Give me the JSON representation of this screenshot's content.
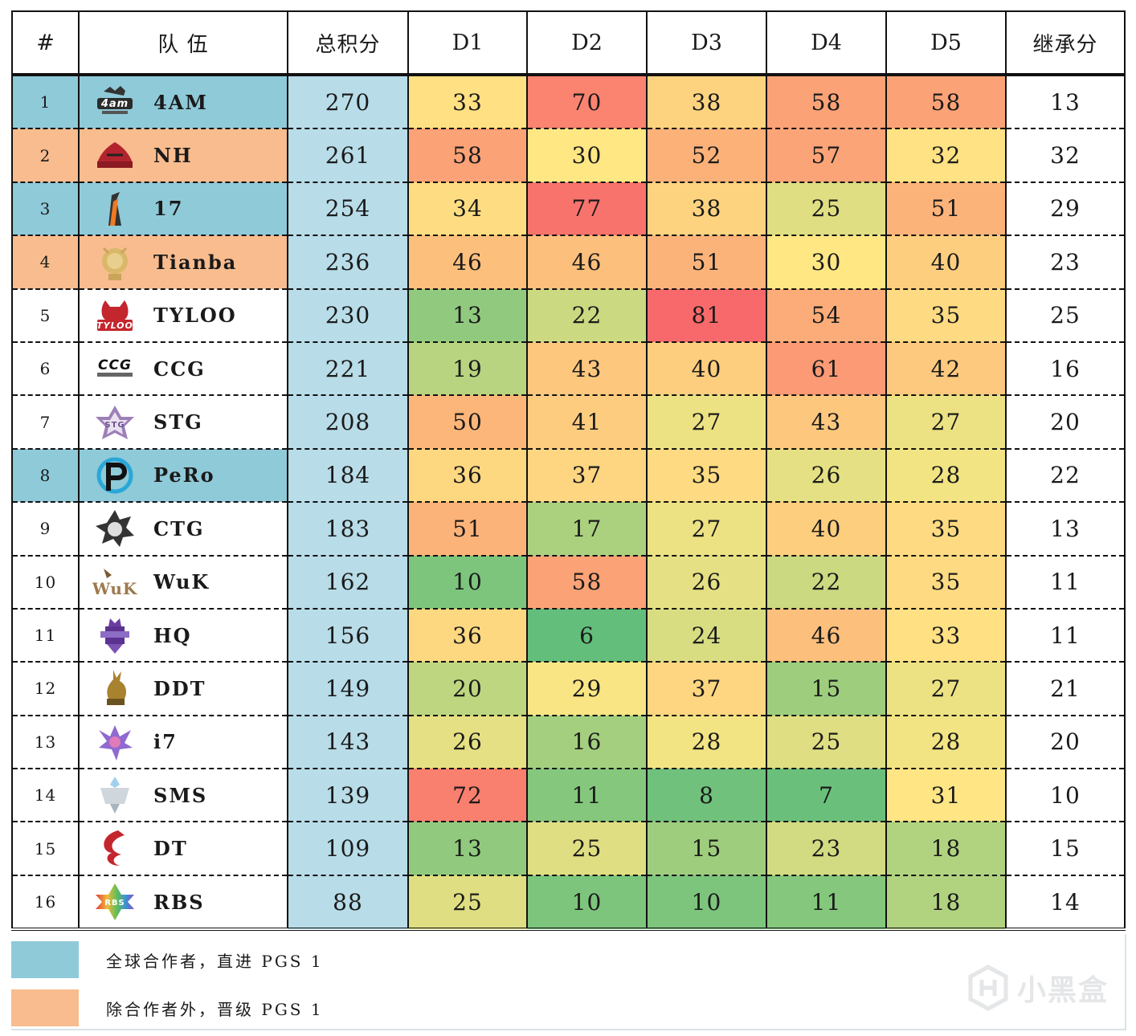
{
  "table": {
    "headers": [
      "#",
      "队 伍",
      "总积分",
      "D1",
      "D2",
      "D3",
      "D4",
      "D5",
      "继承分"
    ],
    "rows": [
      {
        "rank": "1",
        "team": "4AM",
        "logo": "4am-logo-icon",
        "total": "270",
        "days": [
          "33",
          "70",
          "38",
          "58",
          "58"
        ],
        "carry": "13",
        "highlight": "partner"
      },
      {
        "rank": "2",
        "team": "NH",
        "logo": "nh-logo-icon",
        "total": "261",
        "days": [
          "58",
          "30",
          "52",
          "57",
          "32"
        ],
        "carry": "32",
        "highlight": "qualified"
      },
      {
        "rank": "3",
        "team": "17",
        "logo": "17-logo-icon",
        "total": "254",
        "days": [
          "34",
          "77",
          "38",
          "25",
          "51"
        ],
        "carry": "29",
        "highlight": "partner"
      },
      {
        "rank": "4",
        "team": "Tianba",
        "logo": "tianba-logo-icon",
        "total": "236",
        "days": [
          "46",
          "46",
          "51",
          "30",
          "40"
        ],
        "carry": "23",
        "highlight": "qualified"
      },
      {
        "rank": "5",
        "team": "TYLOO",
        "logo": "tyloo-logo-icon",
        "total": "230",
        "days": [
          "13",
          "22",
          "81",
          "54",
          "35"
        ],
        "carry": "25",
        "highlight": "none"
      },
      {
        "rank": "6",
        "team": "CCG",
        "logo": "ccg-logo-icon",
        "total": "221",
        "days": [
          "19",
          "43",
          "40",
          "61",
          "42"
        ],
        "carry": "16",
        "highlight": "none"
      },
      {
        "rank": "7",
        "team": "STG",
        "logo": "stg-logo-icon",
        "total": "208",
        "days": [
          "50",
          "41",
          "27",
          "43",
          "27"
        ],
        "carry": "20",
        "highlight": "none"
      },
      {
        "rank": "8",
        "team": "PeRo",
        "logo": "pero-logo-icon",
        "total": "184",
        "days": [
          "36",
          "37",
          "35",
          "26",
          "28"
        ],
        "carry": "22",
        "highlight": "partner"
      },
      {
        "rank": "9",
        "team": "CTG",
        "logo": "ctg-logo-icon",
        "total": "183",
        "days": [
          "51",
          "17",
          "27",
          "40",
          "35"
        ],
        "carry": "13",
        "highlight": "none"
      },
      {
        "rank": "10",
        "team": "WuK",
        "logo": "wuk-logo-icon",
        "total": "162",
        "days": [
          "10",
          "58",
          "26",
          "22",
          "35"
        ],
        "carry": "11",
        "highlight": "none"
      },
      {
        "rank": "11",
        "team": "HQ",
        "logo": "hq-logo-icon",
        "total": "156",
        "days": [
          "36",
          "6",
          "24",
          "46",
          "33"
        ],
        "carry": "11",
        "highlight": "none"
      },
      {
        "rank": "12",
        "team": "DDT",
        "logo": "ddt-logo-icon",
        "total": "149",
        "days": [
          "20",
          "29",
          "37",
          "15",
          "27"
        ],
        "carry": "21",
        "highlight": "none"
      },
      {
        "rank": "13",
        "team": "i7",
        "logo": "i7-logo-icon",
        "total": "143",
        "days": [
          "26",
          "16",
          "28",
          "25",
          "28"
        ],
        "carry": "20",
        "highlight": "none"
      },
      {
        "rank": "14",
        "team": "SMS",
        "logo": "sms-logo-icon",
        "total": "139",
        "days": [
          "72",
          "11",
          "8",
          "7",
          "31"
        ],
        "carry": "10",
        "highlight": "none"
      },
      {
        "rank": "15",
        "team": "DT",
        "logo": "dt-logo-icon",
        "total": "109",
        "days": [
          "13",
          "25",
          "15",
          "23",
          "18"
        ],
        "carry": "15",
        "highlight": "none"
      },
      {
        "rank": "16",
        "team": "RBS",
        "logo": "rbs-logo-icon",
        "total": "88",
        "days": [
          "25",
          "10",
          "10",
          "11",
          "18"
        ],
        "carry": "14",
        "highlight": "none"
      }
    ]
  },
  "colors": {
    "partner": "#8fcad9",
    "qualified": "#f8bc8e",
    "total_column": "#b8dce8",
    "heat_low": "#63be7b",
    "heat_mid": "#ffe784",
    "heat_high": "#f8696b"
  },
  "legend": [
    {
      "label": "全球合作者，直进 PGS 1",
      "color": "#8fcad9"
    },
    {
      "label": "除合作者外，晋级 PGS 1",
      "color": "#f8bc8e"
    }
  ],
  "watermark": {
    "text": "小黑盒"
  },
  "chart_data": {
    "type": "table",
    "title": "",
    "columns": [
      "#",
      "队 伍",
      "总积分",
      "D1",
      "D2",
      "D3",
      "D4",
      "D5",
      "继承分"
    ],
    "categories": [
      "4AM",
      "NH",
      "17",
      "Tianba",
      "TYLOO",
      "CCG",
      "STG",
      "PeRo",
      "CTG",
      "WuK",
      "HQ",
      "DDT",
      "i7",
      "SMS",
      "DT",
      "RBS"
    ],
    "series": [
      {
        "name": "总积分",
        "values": [
          270,
          261,
          254,
          236,
          230,
          221,
          208,
          184,
          183,
          162,
          156,
          149,
          143,
          139,
          109,
          88
        ]
      },
      {
        "name": "D1",
        "values": [
          33,
          58,
          34,
          46,
          13,
          19,
          50,
          36,
          51,
          10,
          36,
          20,
          26,
          72,
          13,
          25
        ]
      },
      {
        "name": "D2",
        "values": [
          70,
          30,
          77,
          46,
          22,
          43,
          41,
          37,
          17,
          58,
          6,
          29,
          16,
          11,
          25,
          10
        ]
      },
      {
        "name": "D3",
        "values": [
          38,
          52,
          38,
          51,
          81,
          40,
          27,
          35,
          27,
          26,
          24,
          37,
          28,
          8,
          15,
          10
        ]
      },
      {
        "name": "D4",
        "values": [
          58,
          57,
          25,
          30,
          54,
          61,
          43,
          26,
          40,
          22,
          46,
          15,
          25,
          7,
          23,
          11
        ]
      },
      {
        "name": "D5",
        "values": [
          58,
          32,
          51,
          40,
          35,
          42,
          27,
          28,
          35,
          35,
          33,
          27,
          28,
          31,
          18,
          18
        ]
      },
      {
        "name": "继承分",
        "values": [
          13,
          32,
          29,
          23,
          25,
          16,
          20,
          22,
          13,
          11,
          11,
          21,
          20,
          10,
          15,
          14
        ]
      }
    ],
    "heatmap": {
      "columns": [
        "D1",
        "D2",
        "D3",
        "D4",
        "D5"
      ],
      "scale": [
        "#63be7b",
        "#ffe784",
        "#f8696b"
      ],
      "note": "low=green, mid=yellow, high=red"
    },
    "legend": [
      {
        "label": "全球合作者，直进 PGS 1",
        "color": "#8fcad9",
        "teams": [
          "4AM",
          "17",
          "PeRo"
        ]
      },
      {
        "label": "除合作者外，晋级 PGS 1",
        "color": "#f8bc8e",
        "teams": [
          "NH",
          "Tianba"
        ]
      }
    ]
  }
}
